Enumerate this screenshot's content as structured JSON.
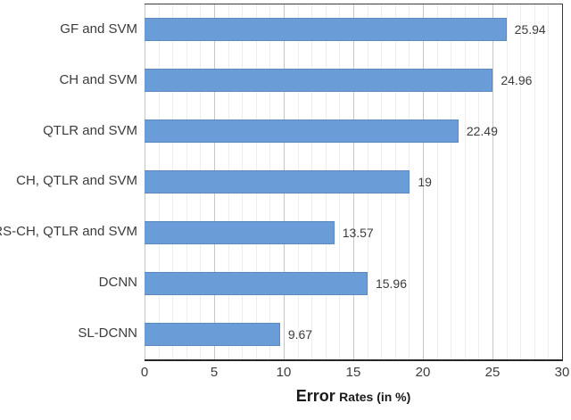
{
  "chart_data": {
    "type": "bar",
    "orientation": "horizontal",
    "categories": [
      "GF and SVM",
      "CH and SVM",
      "QTLR and SVM",
      "CH, QTLR and SVM",
      "RS-CH, QTLR and SVM",
      "DCNN",
      "SL-DCNN"
    ],
    "values": [
      25.94,
      24.96,
      22.49,
      19,
      13.57,
      15.96,
      9.67
    ],
    "value_labels": [
      "25.94",
      "24.96",
      "22.49",
      "19",
      "13.57",
      "15.96",
      "9.67"
    ],
    "title": "",
    "xlabel_main": "Error",
    "xlabel_sub": "Rates (in %)",
    "ylabel": "",
    "xlim": [
      0,
      30
    ],
    "x_ticks": [
      0,
      5,
      10,
      15,
      20,
      25,
      30
    ],
    "minor_grid_step": 1,
    "major_grid_step": 5,
    "grid": true,
    "legend": "none",
    "bar_color": "#6a9cd8",
    "bar_border_color": "#5b8ac2",
    "minor_grid_color": "#ededed",
    "major_grid_color": "#c6c6c6",
    "axis_color": "#262626",
    "text_color": "#3c3c3c"
  }
}
